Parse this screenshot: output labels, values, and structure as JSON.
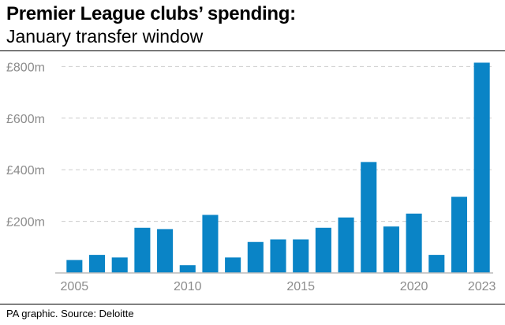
{
  "chart_data": {
    "type": "bar",
    "title": "Premier League clubs’ spending:",
    "subtitle": "January transfer window",
    "categories": [
      "2005",
      "2006",
      "2007",
      "2008",
      "2009",
      "2010",
      "2011",
      "2012",
      "2013",
      "2014",
      "2015",
      "2016",
      "2017",
      "2018",
      "2019",
      "2020",
      "2021",
      "2022",
      "2023"
    ],
    "values": [
      50,
      70,
      60,
      175,
      170,
      30,
      225,
      60,
      120,
      130,
      130,
      175,
      215,
      430,
      180,
      230,
      70,
      295,
      815
    ],
    "x_tick_labels": [
      "2005",
      "2010",
      "2015",
      "2020",
      "2023"
    ],
    "y_ticks": [
      {
        "value": 200,
        "label": "£200m"
      },
      {
        "value": 400,
        "label": "£400m"
      },
      {
        "value": 600,
        "label": "£600m"
      },
      {
        "value": 800,
        "label": "£800m"
      }
    ],
    "ylim": [
      0,
      850
    ],
    "xlabel": "",
    "ylabel": "",
    "grid": true,
    "bar_color": "#0a84c6",
    "grid_color": "#cccccc",
    "axis_color": "#bbbbbb",
    "source": "PA graphic. Source: Deloitte"
  }
}
